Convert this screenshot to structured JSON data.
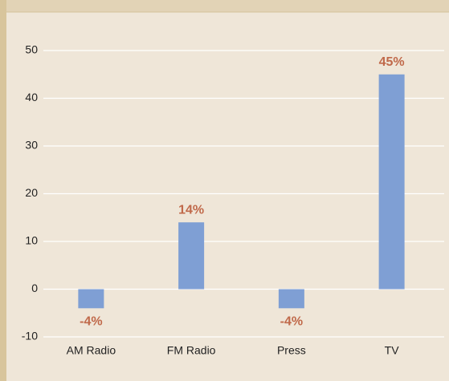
{
  "chart_data": {
    "type": "bar",
    "categories": [
      "AM Radio",
      "FM Radio",
      "Press",
      "TV"
    ],
    "values": [
      -4,
      14,
      -4,
      45
    ],
    "value_labels": [
      "-4%",
      "14%",
      "-4%",
      "45%"
    ],
    "color": "#7f9fd4",
    "label_color": "#c0694a",
    "ylim": [
      -10,
      50
    ],
    "yticks": [
      -10,
      0,
      10,
      20,
      30,
      40,
      50
    ],
    "grid": true
  }
}
